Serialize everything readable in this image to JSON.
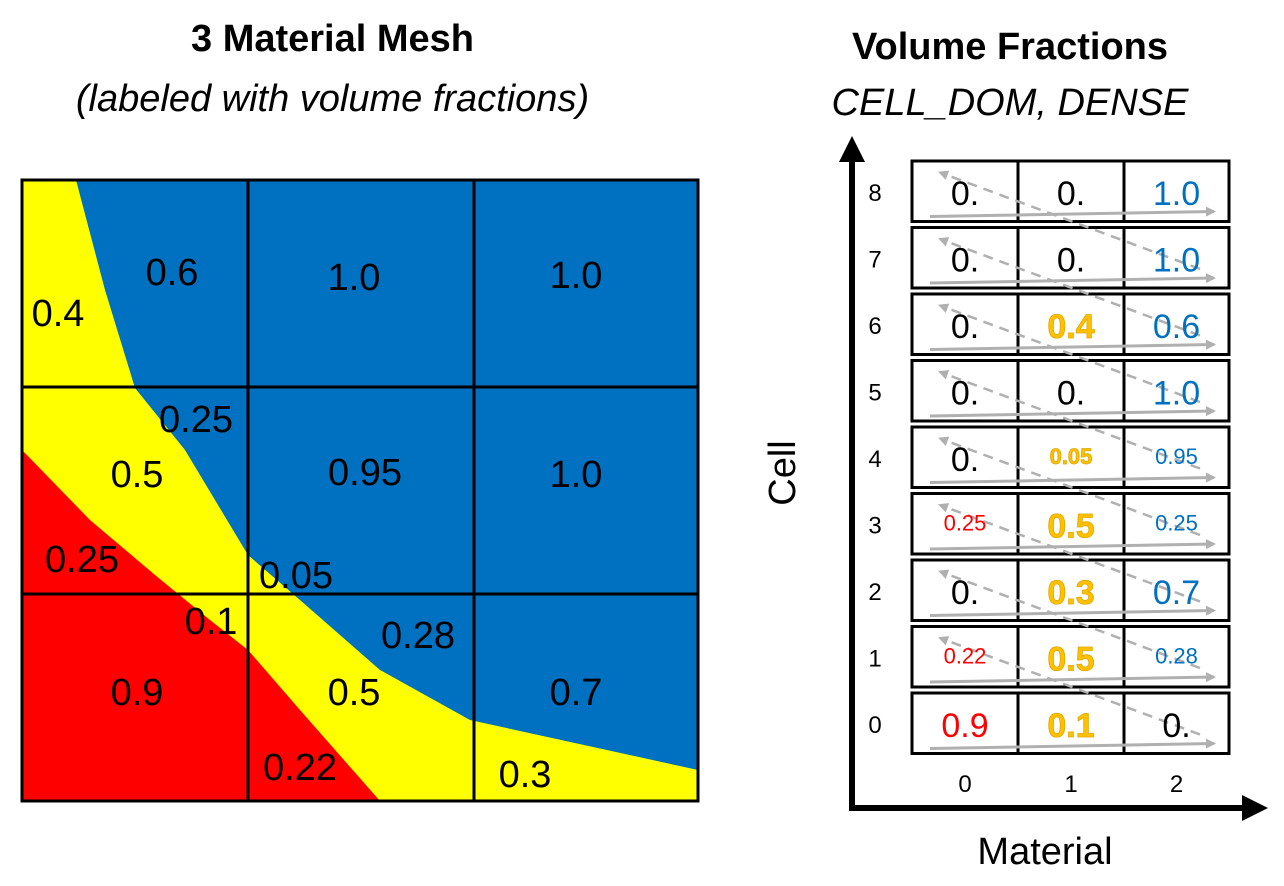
{
  "mesh_panel": {
    "title": "3 Material Mesh",
    "subtitle": "(labeled with volume fractions)",
    "colors": {
      "red": "#ff0000",
      "yellow": "#ffff00",
      "blue": "#0070c0"
    },
    "labels": [
      {
        "text": "0.4",
        "name": "mesh-label-cell6-yellow"
      },
      {
        "text": "0.6",
        "name": "mesh-label-cell6-blue"
      },
      {
        "text": "1.0",
        "name": "mesh-label-cell7-blue"
      },
      {
        "text": "1.0",
        "name": "mesh-label-cell8-blue"
      },
      {
        "text": "0.25",
        "name": "mesh-label-cell3-blue"
      },
      {
        "text": "0.5",
        "name": "mesh-label-cell3-yellow"
      },
      {
        "text": "0.25",
        "name": "mesh-label-cell3-red"
      },
      {
        "text": "0.95",
        "name": "mesh-label-cell4-blue"
      },
      {
        "text": "0.05",
        "name": "mesh-label-cell4-yellow"
      },
      {
        "text": "1.0",
        "name": "mesh-label-cell5-blue"
      },
      {
        "text": "0.1",
        "name": "mesh-label-cell0-yellow"
      },
      {
        "text": "0.9",
        "name": "mesh-label-cell0-red"
      },
      {
        "text": "0.28",
        "name": "mesh-label-cell1-blue"
      },
      {
        "text": "0.5",
        "name": "mesh-label-cell1-yellow"
      },
      {
        "text": "0.22",
        "name": "mesh-label-cell1-red"
      },
      {
        "text": "0.7",
        "name": "mesh-label-cell2-blue"
      },
      {
        "text": "0.3",
        "name": "mesh-label-cell2-yellow"
      }
    ]
  },
  "table_panel": {
    "title": "Volume Fractions",
    "subtitle": "CELL_DOM, DENSE",
    "y_axis_label": "Cell",
    "x_axis_label": "Material",
    "cell_indices": [
      "0",
      "1",
      "2",
      "3",
      "4",
      "5",
      "6",
      "7",
      "8"
    ],
    "material_indices": [
      "0",
      "1",
      "2"
    ],
    "rows": [
      [
        {
          "text": "0.9",
          "mat": "red",
          "size": "large"
        },
        {
          "text": "0.1",
          "mat": "yellow",
          "size": "large"
        },
        {
          "text": "0.",
          "mat": "black",
          "size": "large"
        }
      ],
      [
        {
          "text": "0.22",
          "mat": "red",
          "size": "small"
        },
        {
          "text": "0.5",
          "mat": "yellow",
          "size": "large"
        },
        {
          "text": "0.28",
          "mat": "blue",
          "size": "small"
        }
      ],
      [
        {
          "text": "0.",
          "mat": "black",
          "size": "large"
        },
        {
          "text": "0.3",
          "mat": "yellow",
          "size": "large"
        },
        {
          "text": "0.7",
          "mat": "blue",
          "size": "large"
        }
      ],
      [
        {
          "text": "0.25",
          "mat": "red",
          "size": "small"
        },
        {
          "text": "0.5",
          "mat": "yellow",
          "size": "large"
        },
        {
          "text": "0.25",
          "mat": "blue",
          "size": "small"
        }
      ],
      [
        {
          "text": "0.",
          "mat": "black",
          "size": "large"
        },
        {
          "text": "0.05",
          "mat": "yellow",
          "size": "small"
        },
        {
          "text": "0.95",
          "mat": "blue",
          "size": "small"
        }
      ],
      [
        {
          "text": "0.",
          "mat": "black",
          "size": "large"
        },
        {
          "text": "0.",
          "mat": "black",
          "size": "large"
        },
        {
          "text": "1.0",
          "mat": "blue",
          "size": "large"
        }
      ],
      [
        {
          "text": "0.",
          "mat": "black",
          "size": "large"
        },
        {
          "text": "0.4",
          "mat": "yellow",
          "size": "large"
        },
        {
          "text": "0.6",
          "mat": "blue",
          "size": "large"
        }
      ],
      [
        {
          "text": "0.",
          "mat": "black",
          "size": "large"
        },
        {
          "text": "0.",
          "mat": "black",
          "size": "large"
        },
        {
          "text": "1.0",
          "mat": "blue",
          "size": "large"
        }
      ],
      [
        {
          "text": "0.",
          "mat": "black",
          "size": "large"
        },
        {
          "text": "0.",
          "mat": "black",
          "size": "large"
        },
        {
          "text": "1.0",
          "mat": "blue",
          "size": "large"
        }
      ]
    ],
    "text_colors": {
      "red": "#ff0000",
      "yellow": "#ffc000",
      "blue": "#0070c0",
      "black": "#000000"
    },
    "arrow_color": "#b0b0b0"
  }
}
